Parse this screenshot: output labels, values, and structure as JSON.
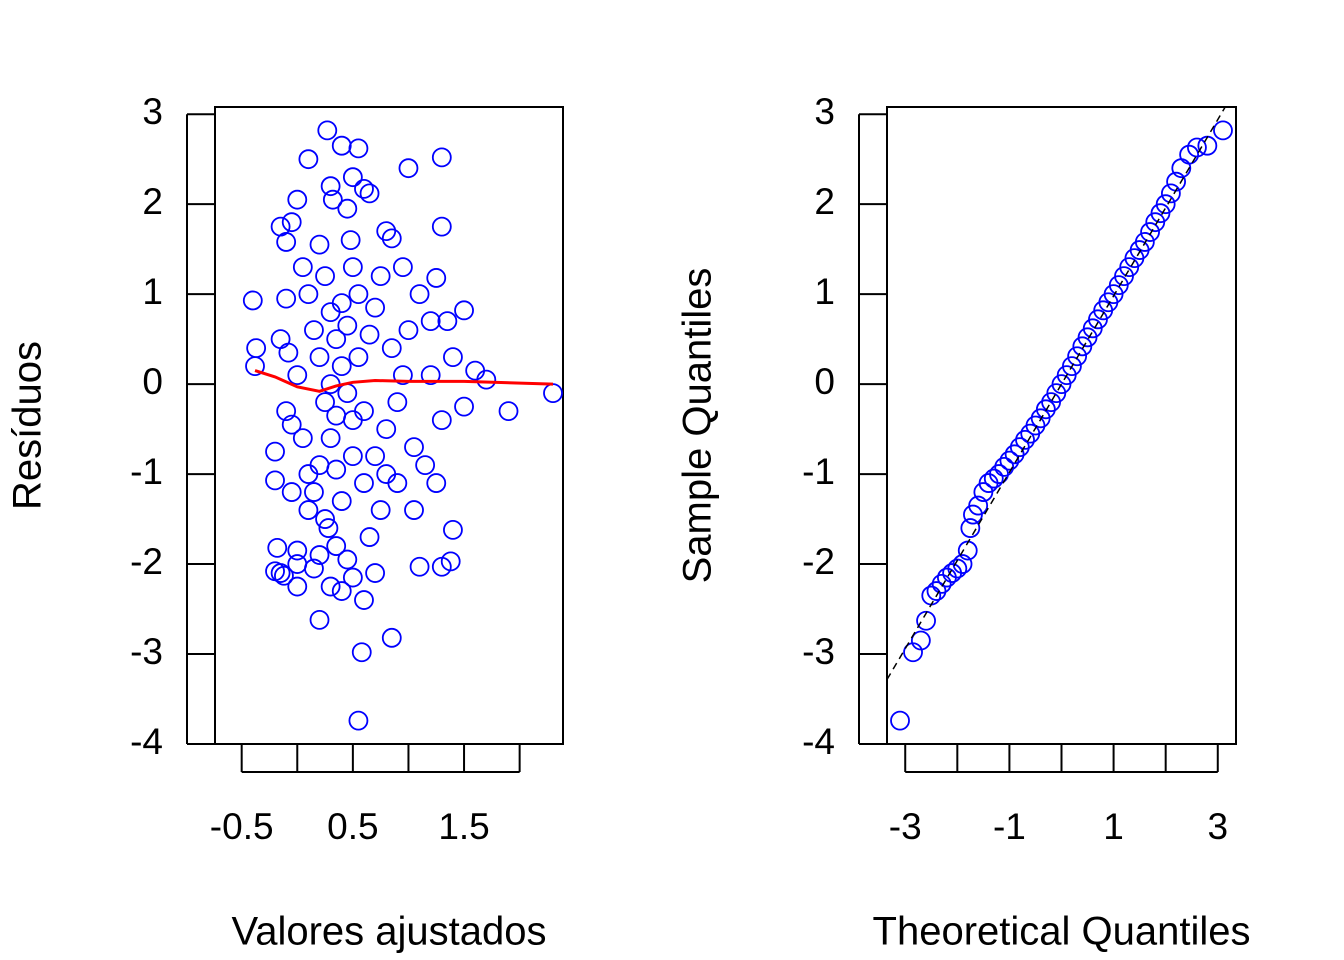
{
  "chart_data": [
    {
      "type": "scatter",
      "xlabel": "Valores ajustados",
      "ylabel": "Resíduos",
      "xlim": [
        -0.74,
        2.39
      ],
      "ylim": [
        -4.0,
        3.08
      ],
      "xticks": [
        -0.5,
        0.5,
        1.5
      ],
      "xminor_ticks": [
        0,
        1,
        2
      ],
      "yticks": [
        -4,
        -3,
        -2,
        -1,
        0,
        1,
        2,
        3
      ],
      "color": "#0000ff",
      "x": [
        -0.4,
        -0.37,
        -0.38,
        -0.2,
        -0.2,
        -0.18,
        -0.2,
        -0.15,
        -0.12,
        -0.15,
        -0.1,
        0,
        0,
        0,
        0,
        0.1,
        0.2,
        0.27,
        0.4,
        0.55,
        0.5,
        0.58,
        0.55,
        0.85,
        1.0,
        1.3,
        1.3,
        1.05,
        1.1,
        1.3,
        1.38,
        1.4,
        1.35,
        1.5,
        1.6,
        1.7,
        1.5,
        1.9,
        2.3,
        1.25,
        1.2,
        0.8,
        0.85,
        0.65,
        0.6,
        0.3,
        0.32,
        0.45,
        0.48,
        0.2,
        -0.05,
        -0.1,
        0.05,
        0.1,
        0.25,
        0.3,
        0.35,
        0.4,
        0.45,
        0.5,
        0.3,
        0.2,
        0.15,
        0.1,
        0.25,
        0.35,
        0.45,
        0.5,
        0.4,
        0.6,
        0.7,
        0.65,
        0.75,
        0.6,
        0.7,
        0.8,
        0.9,
        0.95,
        0.85,
        1.0,
        1.1,
        0.95,
        1.05,
        1.15,
        1.25,
        1.3,
        1.4,
        1.2,
        -0.05,
        -0.1,
        -0.15,
        -0.08,
        0,
        0.05,
        0.1,
        -0.05,
        0.15,
        0.2,
        0.25,
        0.3,
        0.35,
        0.4,
        0.45,
        0.5,
        0.55,
        0.55,
        0.6,
        0.65,
        0.7,
        0.75,
        0.8,
        0.9,
        0.2,
        0.15,
        0.3,
        0.28,
        0.35,
        0.4,
        0.5
      ],
      "values": [
        0.93,
        0.4,
        0.2,
        -0.75,
        -1.07,
        -1.82,
        -2.08,
        -2.1,
        -2.13,
        1.75,
        0.95,
        2.05,
        -1.85,
        -2.25,
        -2.0,
        2.5,
        -2.62,
        2.82,
        2.65,
        2.62,
        2.3,
        -2.98,
        -3.74,
        -2.82,
        2.4,
        2.52,
        1.75,
        -1.4,
        -2.03,
        -2.03,
        -1.97,
        -1.62,
        0.7,
        0.82,
        0.15,
        0.05,
        -0.25,
        -0.3,
        -0.1,
        1.18,
        0.7,
        1.7,
        1.62,
        2.12,
        2.17,
        2.2,
        2.05,
        1.95,
        1.6,
        1.55,
        1.8,
        1.58,
        1.3,
        1.0,
        1.2,
        0.8,
        0.5,
        0.2,
        -0.1,
        -0.4,
        -0.6,
        -0.9,
        -1.2,
        -1.4,
        -1.5,
        -1.8,
        -1.95,
        -2.15,
        -2.3,
        -2.4,
        -2.1,
        -1.7,
        -1.4,
        -1.1,
        -0.8,
        -0.5,
        -0.2,
        0.1,
        0.4,
        0.6,
        1.0,
        1.3,
        -0.7,
        -0.9,
        -1.1,
        -0.4,
        0.3,
        0.1,
        -0.45,
        -0.3,
        0.5,
        0.35,
        0.1,
        -0.6,
        -1.0,
        -1.2,
        0.6,
        0.3,
        -0.2,
        0.0,
        -0.35,
        0.9,
        0.65,
        1.3,
        1.0,
        0.3,
        -0.3,
        0.55,
        0.85,
        1.2,
        -1.0,
        -1.1,
        -1.9,
        -2.05,
        -2.25,
        -1.6,
        -0.95,
        -1.3,
        -0.8
      ],
      "smooth": {
        "color": "#ff0000",
        "x": [
          -0.38,
          -0.2,
          0,
          0.2,
          0.35,
          0.5,
          0.7,
          1.0,
          1.5,
          2.3
        ],
        "values": [
          0.15,
          0.08,
          -0.03,
          -0.08,
          -0.02,
          0.02,
          0.04,
          0.03,
          0.03,
          0.0
        ]
      }
    },
    {
      "type": "qq",
      "xlabel": "Theoretical Quantiles",
      "ylabel": "Sample Quantiles",
      "xlim": [
        -3.35,
        3.35
      ],
      "ylim": [
        -4.0,
        3.08
      ],
      "xticks": [
        -3,
        -1,
        1,
        3
      ],
      "xminor_ticks": [
        -2,
        0,
        2
      ],
      "yticks": [
        -4,
        -3,
        -2,
        -1,
        0,
        1,
        2,
        3
      ],
      "color": "#0000ff",
      "x": [
        -3.1,
        -2.85,
        -2.7,
        -2.6,
        -2.5,
        -2.4,
        -2.3,
        -2.2,
        -2.1,
        -2.0,
        -1.9,
        -1.8,
        -1.75,
        -1.7,
        -1.6,
        -1.5,
        -1.4,
        -1.3,
        -1.2,
        -1.1,
        -1.0,
        -0.9,
        -0.8,
        -0.7,
        -0.6,
        -0.5,
        -0.4,
        -0.3,
        -0.2,
        -0.1,
        0,
        0.1,
        0.2,
        0.3,
        0.4,
        0.5,
        0.6,
        0.7,
        0.8,
        0.9,
        1.0,
        1.1,
        1.2,
        1.3,
        1.4,
        1.5,
        1.6,
        1.7,
        1.8,
        1.9,
        2.0,
        2.1,
        2.2,
        2.3,
        2.45,
        2.6,
        2.8,
        3.1
      ],
      "values": [
        -3.74,
        -2.98,
        -2.85,
        -2.63,
        -2.35,
        -2.3,
        -2.22,
        -2.15,
        -2.1,
        -2.05,
        -2.0,
        -1.85,
        -1.6,
        -1.45,
        -1.35,
        -1.2,
        -1.1,
        -1.05,
        -1.0,
        -0.92,
        -0.85,
        -0.78,
        -0.7,
        -0.62,
        -0.55,
        -0.46,
        -0.38,
        -0.28,
        -0.2,
        -0.1,
        0,
        0.1,
        0.2,
        0.31,
        0.42,
        0.52,
        0.62,
        0.72,
        0.82,
        0.91,
        1.0,
        1.1,
        1.2,
        1.3,
        1.4,
        1.49,
        1.58,
        1.69,
        1.8,
        1.9,
        2.0,
        2.12,
        2.25,
        2.4,
        2.55,
        2.63,
        2.65,
        2.82
      ],
      "reference_line": {
        "intercept": 0,
        "slope": 0.98,
        "style": "dashed",
        "color": "#000000"
      }
    }
  ]
}
